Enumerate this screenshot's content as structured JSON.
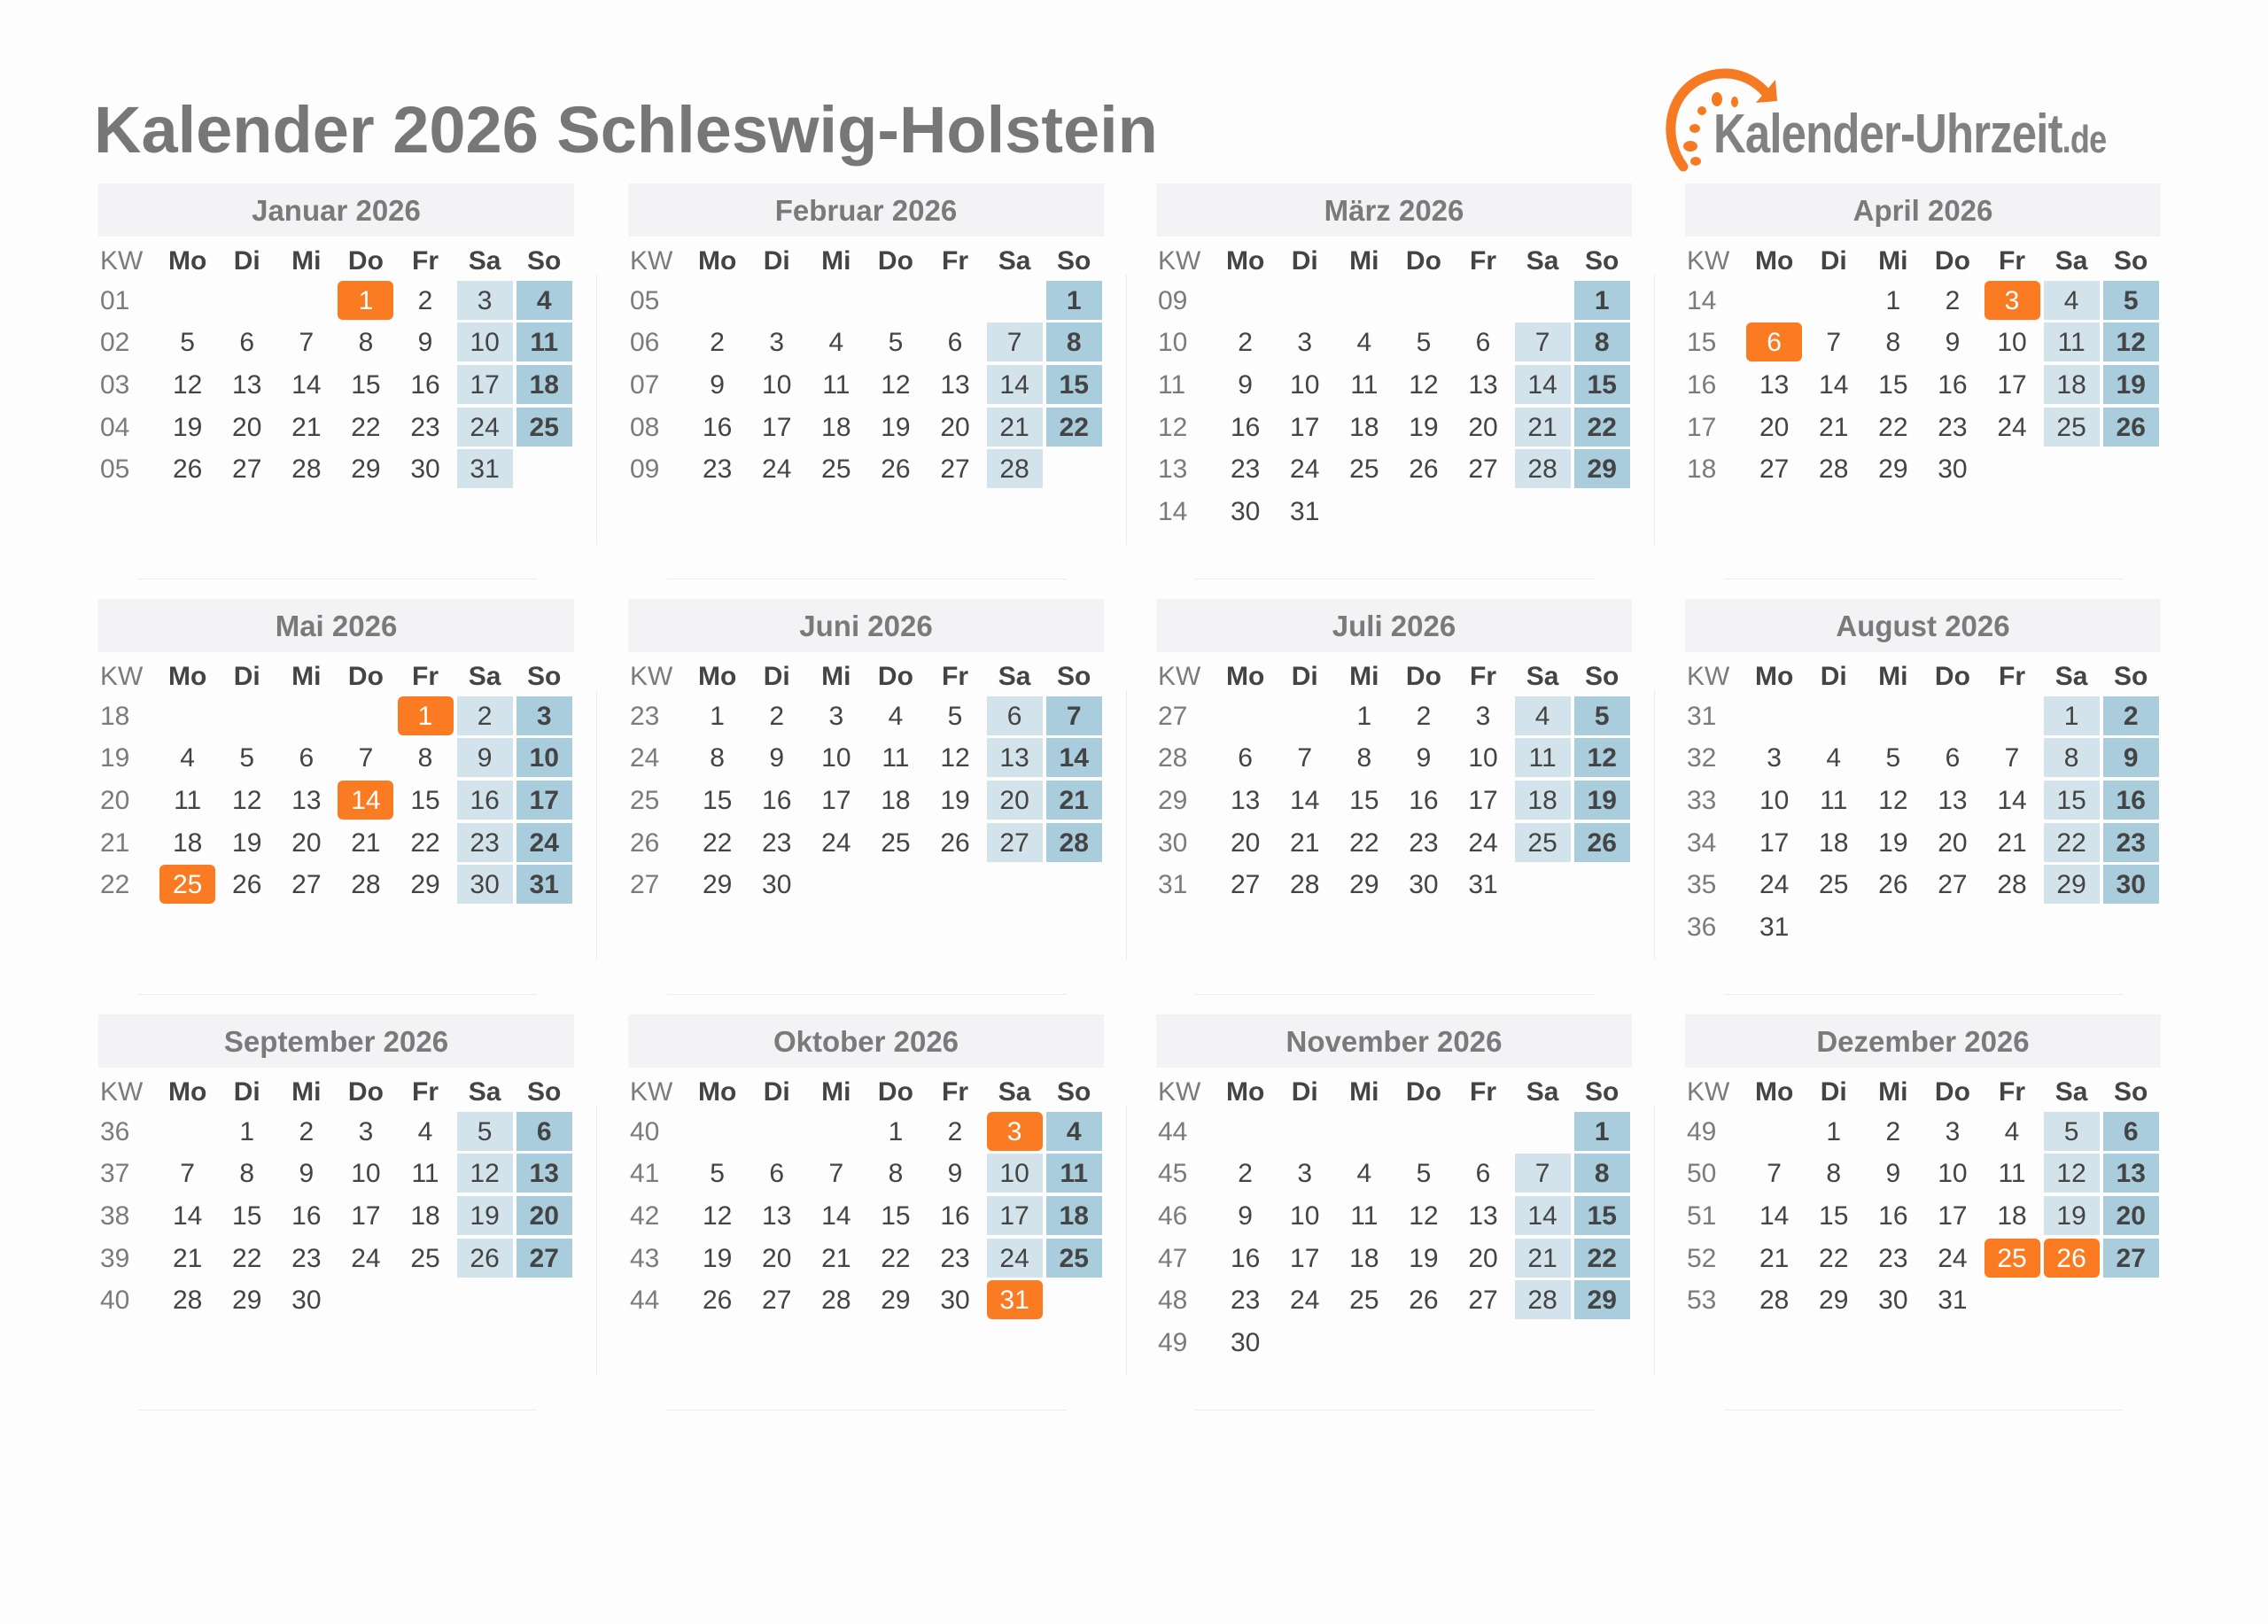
{
  "title": "Kalender 2026 Schleswig-Holstein",
  "logo": {
    "text": "Kalender-Uhrzeit",
    "tld": ".de",
    "color": "#fb7b23"
  },
  "colors": {
    "holiday": "#fb7b23",
    "saturday": "#d3e3ec",
    "sunday": "#a9cddc",
    "header": "#f3f2f4"
  },
  "weekday_header": [
    "KW",
    "Mo",
    "Di",
    "Mi",
    "Do",
    "Fr",
    "Sa",
    "So"
  ],
  "months": [
    {
      "title": "Januar 2026",
      "holidays": [
        "1"
      ],
      "weeks": [
        {
          "kw": "01",
          "days": [
            "",
            "",
            "",
            "1",
            "2",
            "3",
            "4"
          ]
        },
        {
          "kw": "02",
          "days": [
            "5",
            "6",
            "7",
            "8",
            "9",
            "10",
            "11"
          ]
        },
        {
          "kw": "03",
          "days": [
            "12",
            "13",
            "14",
            "15",
            "16",
            "17",
            "18"
          ]
        },
        {
          "kw": "04",
          "days": [
            "19",
            "20",
            "21",
            "22",
            "23",
            "24",
            "25"
          ]
        },
        {
          "kw": "05",
          "days": [
            "26",
            "27",
            "28",
            "29",
            "30",
            "31",
            ""
          ]
        }
      ]
    },
    {
      "title": "Februar 2026",
      "holidays": [],
      "weeks": [
        {
          "kw": "05",
          "days": [
            "",
            "",
            "",
            "",
            "",
            "",
            "1"
          ]
        },
        {
          "kw": "06",
          "days": [
            "2",
            "3",
            "4",
            "5",
            "6",
            "7",
            "8"
          ]
        },
        {
          "kw": "07",
          "days": [
            "9",
            "10",
            "11",
            "12",
            "13",
            "14",
            "15"
          ]
        },
        {
          "kw": "08",
          "days": [
            "16",
            "17",
            "18",
            "19",
            "20",
            "21",
            "22"
          ]
        },
        {
          "kw": "09",
          "days": [
            "23",
            "24",
            "25",
            "26",
            "27",
            "28",
            ""
          ]
        }
      ]
    },
    {
      "title": "März 2026",
      "holidays": [],
      "weeks": [
        {
          "kw": "09",
          "days": [
            "",
            "",
            "",
            "",
            "",
            "",
            "1"
          ]
        },
        {
          "kw": "10",
          "days": [
            "2",
            "3",
            "4",
            "5",
            "6",
            "7",
            "8"
          ]
        },
        {
          "kw": "11",
          "days": [
            "9",
            "10",
            "11",
            "12",
            "13",
            "14",
            "15"
          ]
        },
        {
          "kw": "12",
          "days": [
            "16",
            "17",
            "18",
            "19",
            "20",
            "21",
            "22"
          ]
        },
        {
          "kw": "13",
          "days": [
            "23",
            "24",
            "25",
            "26",
            "27",
            "28",
            "29"
          ]
        },
        {
          "kw": "14",
          "days": [
            "30",
            "31",
            "",
            "",
            "",
            "",
            ""
          ]
        }
      ]
    },
    {
      "title": "April 2026",
      "holidays": [
        "3",
        "6"
      ],
      "weeks": [
        {
          "kw": "14",
          "days": [
            "",
            "",
            "1",
            "2",
            "3",
            "4",
            "5"
          ]
        },
        {
          "kw": "15",
          "days": [
            "6",
            "7",
            "8",
            "9",
            "10",
            "11",
            "12"
          ]
        },
        {
          "kw": "16",
          "days": [
            "13",
            "14",
            "15",
            "16",
            "17",
            "18",
            "19"
          ]
        },
        {
          "kw": "17",
          "days": [
            "20",
            "21",
            "22",
            "23",
            "24",
            "25",
            "26"
          ]
        },
        {
          "kw": "18",
          "days": [
            "27",
            "28",
            "29",
            "30",
            "",
            "",
            ""
          ]
        }
      ]
    },
    {
      "title": "Mai 2026",
      "holidays": [
        "1",
        "14",
        "25"
      ],
      "weeks": [
        {
          "kw": "18",
          "days": [
            "",
            "",
            "",
            "",
            "1",
            "2",
            "3"
          ]
        },
        {
          "kw": "19",
          "days": [
            "4",
            "5",
            "6",
            "7",
            "8",
            "9",
            "10"
          ]
        },
        {
          "kw": "20",
          "days": [
            "11",
            "12",
            "13",
            "14",
            "15",
            "16",
            "17"
          ]
        },
        {
          "kw": "21",
          "days": [
            "18",
            "19",
            "20",
            "21",
            "22",
            "23",
            "24"
          ]
        },
        {
          "kw": "22",
          "days": [
            "25",
            "26",
            "27",
            "28",
            "29",
            "30",
            "31"
          ]
        }
      ]
    },
    {
      "title": "Juni 2026",
      "holidays": [],
      "weeks": [
        {
          "kw": "23",
          "days": [
            "1",
            "2",
            "3",
            "4",
            "5",
            "6",
            "7"
          ]
        },
        {
          "kw": "24",
          "days": [
            "8",
            "9",
            "10",
            "11",
            "12",
            "13",
            "14"
          ]
        },
        {
          "kw": "25",
          "days": [
            "15",
            "16",
            "17",
            "18",
            "19",
            "20",
            "21"
          ]
        },
        {
          "kw": "26",
          "days": [
            "22",
            "23",
            "24",
            "25",
            "26",
            "27",
            "28"
          ]
        },
        {
          "kw": "27",
          "days": [
            "29",
            "30",
            "",
            "",
            "",
            "",
            ""
          ]
        }
      ]
    },
    {
      "title": "Juli 2026",
      "holidays": [],
      "weeks": [
        {
          "kw": "27",
          "days": [
            "",
            "",
            "1",
            "2",
            "3",
            "4",
            "5"
          ]
        },
        {
          "kw": "28",
          "days": [
            "6",
            "7",
            "8",
            "9",
            "10",
            "11",
            "12"
          ]
        },
        {
          "kw": "29",
          "days": [
            "13",
            "14",
            "15",
            "16",
            "17",
            "18",
            "19"
          ]
        },
        {
          "kw": "30",
          "days": [
            "20",
            "21",
            "22",
            "23",
            "24",
            "25",
            "26"
          ]
        },
        {
          "kw": "31",
          "days": [
            "27",
            "28",
            "29",
            "30",
            "31",
            "",
            ""
          ]
        }
      ]
    },
    {
      "title": "August 2026",
      "holidays": [],
      "weeks": [
        {
          "kw": "31",
          "days": [
            "",
            "",
            "",
            "",
            "",
            "1",
            "2"
          ]
        },
        {
          "kw": "32",
          "days": [
            "3",
            "4",
            "5",
            "6",
            "7",
            "8",
            "9"
          ]
        },
        {
          "kw": "33",
          "days": [
            "10",
            "11",
            "12",
            "13",
            "14",
            "15",
            "16"
          ]
        },
        {
          "kw": "34",
          "days": [
            "17",
            "18",
            "19",
            "20",
            "21",
            "22",
            "23"
          ]
        },
        {
          "kw": "35",
          "days": [
            "24",
            "25",
            "26",
            "27",
            "28",
            "29",
            "30"
          ]
        },
        {
          "kw": "36",
          "days": [
            "31",
            "",
            "",
            "",
            "",
            "",
            ""
          ]
        }
      ]
    },
    {
      "title": "September 2026",
      "holidays": [],
      "weeks": [
        {
          "kw": "36",
          "days": [
            "",
            "1",
            "2",
            "3",
            "4",
            "5",
            "6"
          ]
        },
        {
          "kw": "37",
          "days": [
            "7",
            "8",
            "9",
            "10",
            "11",
            "12",
            "13"
          ]
        },
        {
          "kw": "38",
          "days": [
            "14",
            "15",
            "16",
            "17",
            "18",
            "19",
            "20"
          ]
        },
        {
          "kw": "39",
          "days": [
            "21",
            "22",
            "23",
            "24",
            "25",
            "26",
            "27"
          ]
        },
        {
          "kw": "40",
          "days": [
            "28",
            "29",
            "30",
            "",
            "",
            "",
            ""
          ]
        }
      ]
    },
    {
      "title": "Oktober 2026",
      "holidays": [
        "3",
        "31"
      ],
      "weeks": [
        {
          "kw": "40",
          "days": [
            "",
            "",
            "",
            "1",
            "2",
            "3",
            "4"
          ]
        },
        {
          "kw": "41",
          "days": [
            "5",
            "6",
            "7",
            "8",
            "9",
            "10",
            "11"
          ]
        },
        {
          "kw": "42",
          "days": [
            "12",
            "13",
            "14",
            "15",
            "16",
            "17",
            "18"
          ]
        },
        {
          "kw": "43",
          "days": [
            "19",
            "20",
            "21",
            "22",
            "23",
            "24",
            "25"
          ]
        },
        {
          "kw": "44",
          "days": [
            "26",
            "27",
            "28",
            "29",
            "30",
            "31",
            ""
          ]
        }
      ]
    },
    {
      "title": "November 2026",
      "holidays": [],
      "weeks": [
        {
          "kw": "44",
          "days": [
            "",
            "",
            "",
            "",
            "",
            "",
            "1"
          ]
        },
        {
          "kw": "45",
          "days": [
            "2",
            "3",
            "4",
            "5",
            "6",
            "7",
            "8"
          ]
        },
        {
          "kw": "46",
          "days": [
            "9",
            "10",
            "11",
            "12",
            "13",
            "14",
            "15"
          ]
        },
        {
          "kw": "47",
          "days": [
            "16",
            "17",
            "18",
            "19",
            "20",
            "21",
            "22"
          ]
        },
        {
          "kw": "48",
          "days": [
            "23",
            "24",
            "25",
            "26",
            "27",
            "28",
            "29"
          ]
        },
        {
          "kw": "49",
          "days": [
            "30",
            "",
            "",
            "",
            "",
            "",
            ""
          ]
        }
      ]
    },
    {
      "title": "Dezember 2026",
      "holidays": [
        "25",
        "26"
      ],
      "weeks": [
        {
          "kw": "49",
          "days": [
            "",
            "1",
            "2",
            "3",
            "4",
            "5",
            "6"
          ]
        },
        {
          "kw": "50",
          "days": [
            "7",
            "8",
            "9",
            "10",
            "11",
            "12",
            "13"
          ]
        },
        {
          "kw": "51",
          "days": [
            "14",
            "15",
            "16",
            "17",
            "18",
            "19",
            "20"
          ]
        },
        {
          "kw": "52",
          "days": [
            "21",
            "22",
            "23",
            "24",
            "25",
            "26",
            "27"
          ]
        },
        {
          "kw": "53",
          "days": [
            "28",
            "29",
            "30",
            "31",
            "",
            "",
            ""
          ]
        }
      ]
    }
  ]
}
